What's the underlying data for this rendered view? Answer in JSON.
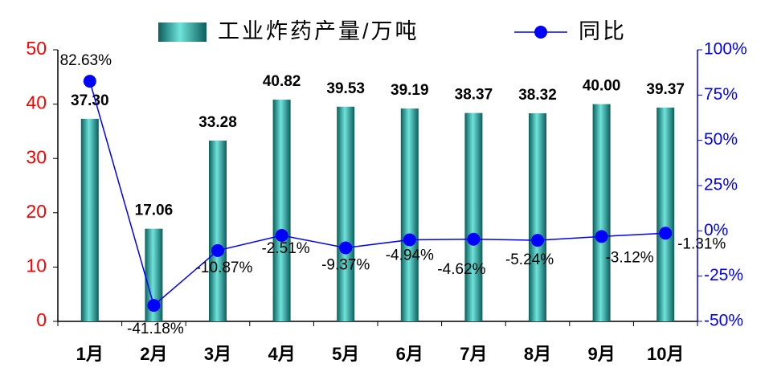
{
  "chart_data": {
    "type": "bar",
    "categories": [
      "1月",
      "2月",
      "3月",
      "4月",
      "5月",
      "6月",
      "7月",
      "8月",
      "9月",
      "10月"
    ],
    "series": [
      {
        "name": "工业炸药产量/万吨",
        "type": "bar",
        "color": "#1a9a96",
        "values": [
          37.3,
          17.06,
          33.28,
          40.82,
          39.53,
          39.19,
          38.37,
          38.32,
          40.0,
          39.37
        ],
        "value_labels": [
          "37.30",
          "17.06",
          "33.28",
          "40.82",
          "39.53",
          "39.19",
          "38.37",
          "38.32",
          "40.00",
          "39.37"
        ]
      },
      {
        "name": "同比",
        "type": "line",
        "axis": "y2",
        "color": "#0000ff",
        "values": [
          82.63,
          -41.18,
          -10.87,
          -2.51,
          -9.37,
          -4.94,
          -4.62,
          -5.24,
          -3.12,
          -1.31
        ],
        "value_labels": [
          "82.63%",
          "-41.18%",
          "-10.87%",
          "-2.51%",
          "-9.37%",
          "-4.94%",
          "-4.62%",
          "-5.24%",
          "-3.12%",
          "-1.31%"
        ]
      }
    ],
    "ylim": [
      0,
      50
    ],
    "yticks": [
      0,
      10,
      20,
      30,
      40,
      50
    ],
    "y_color": "#ff0000",
    "y2lim": [
      -50,
      100
    ],
    "y2ticks": [
      {
        "value": -50,
        "label": "-50%"
      },
      {
        "value": -25,
        "label": "-25%"
      },
      {
        "value": 0,
        "label": "0%"
      },
      {
        "value": 25,
        "label": "25%"
      },
      {
        "value": 50,
        "label": "50%"
      },
      {
        "value": 75,
        "label": "75%"
      },
      {
        "value": 100,
        "label": "100%"
      }
    ],
    "y2_color": "#0000ff",
    "grid": false,
    "legend": "top"
  }
}
